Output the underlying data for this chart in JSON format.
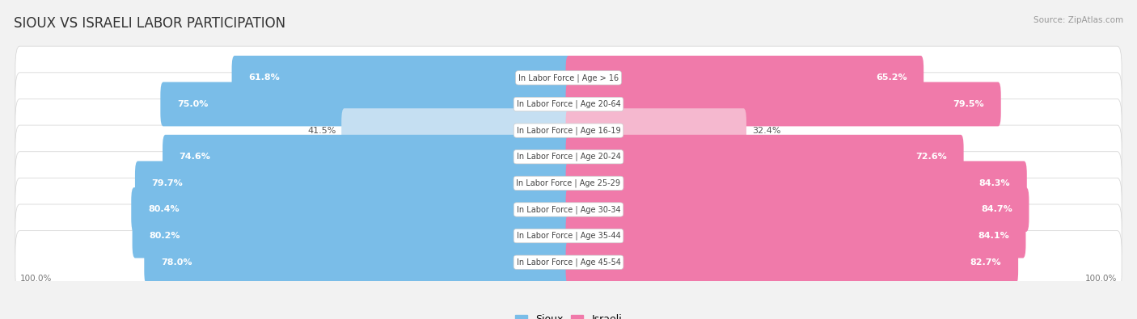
{
  "title": "SIOUX VS ISRAELI LABOR PARTICIPATION",
  "source": "Source: ZipAtlas.com",
  "categories": [
    "In Labor Force | Age > 16",
    "In Labor Force | Age 20-64",
    "In Labor Force | Age 16-19",
    "In Labor Force | Age 20-24",
    "In Labor Force | Age 25-29",
    "In Labor Force | Age 30-34",
    "In Labor Force | Age 35-44",
    "In Labor Force | Age 45-54"
  ],
  "sioux_values": [
    61.8,
    75.0,
    41.5,
    74.6,
    79.7,
    80.4,
    80.2,
    78.0
  ],
  "israeli_values": [
    65.2,
    79.5,
    32.4,
    72.6,
    84.3,
    84.7,
    84.1,
    82.7
  ],
  "sioux_color": "#7abde8",
  "sioux_light_color": "#c5dff2",
  "israeli_color": "#f07aaa",
  "israeli_light_color": "#f5b8cf",
  "bg_color": "#f2f2f2",
  "row_bg": "#ffffff",
  "row_border": "#d8d8d8",
  "max_value": 100.0,
  "label_fontsize": 8.0,
  "cat_fontsize": 7.0,
  "title_fontsize": 12,
  "source_fontsize": 7.5,
  "legend_fontsize": 9,
  "axis_label_fontsize": 7.5
}
